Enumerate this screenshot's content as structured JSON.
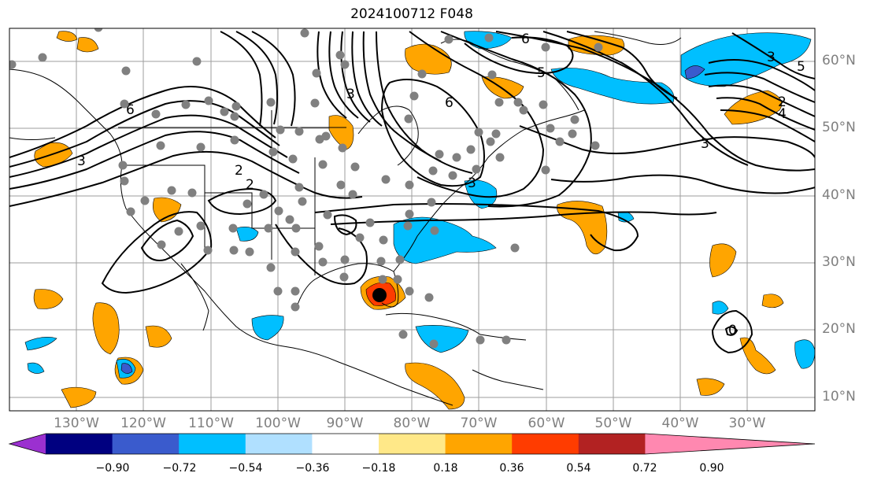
{
  "title": "2024100712 F048",
  "lat_labels": [
    "60°N",
    "50°N",
    "40°N",
    "30°N",
    "20°N",
    "10°N"
  ],
  "lon_labels": [
    "130°W",
    "120°W",
    "110°W",
    "100°W",
    "90°W",
    "80°W",
    "70°W",
    "60°W",
    "50°W",
    "40°W",
    "30°W"
  ],
  "colorbar": {
    "ticks": [
      "−0.90",
      "−0.72",
      "−0.54",
      "−0.36",
      "−0.18",
      "0.18",
      "0.36",
      "0.54",
      "0.72",
      "0.90"
    ],
    "colors": [
      "#9b30d0",
      "#000080",
      "#3a5bcd",
      "#00bfff",
      "#b0e0ff",
      "#ffffff",
      "#ffe888",
      "#ffa500",
      "#ff3c00",
      "#b22222",
      "#ff88b0"
    ]
  },
  "contour_labels": [
    "6",
    "3",
    "2",
    "2",
    "3",
    "6",
    "3",
    "5",
    "6",
    "3",
    "4",
    "5",
    "0",
    "3",
    "2"
  ],
  "colors": {
    "contour": "#000000",
    "station": "#808080",
    "storm_center": "#000000",
    "grid": "#9e9e9e"
  }
}
